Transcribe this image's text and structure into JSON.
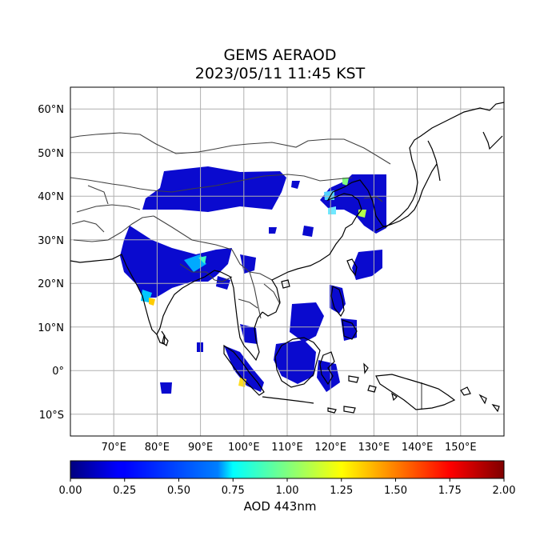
{
  "title_line1": "GEMS AERAOD",
  "title_line2": "2023/05/11 11:45 KST",
  "map": {
    "lon_range": [
      60,
      160
    ],
    "lat_range": [
      -15,
      65
    ],
    "gridlines": true,
    "lat_ticks": [
      "60°N",
      "50°N",
      "40°N",
      "30°N",
      "20°N",
      "10°N",
      "0°",
      "10°S"
    ],
    "lon_ticks": [
      "70°E",
      "80°E",
      "90°E",
      "100°E",
      "110°E",
      "120°E",
      "130°E",
      "140°E",
      "150°E"
    ],
    "colormap": "jet"
  },
  "colorbar": {
    "label": "AOD 443nm",
    "min": 0.0,
    "max": 2.0,
    "ticks": [
      "0.00",
      "0.25",
      "0.50",
      "0.75",
      "1.00",
      "1.25",
      "1.50",
      "1.75",
      "2.00"
    ],
    "colors": [
      "#00007f",
      "#0000ff",
      "#007fff",
      "#00ffff",
      "#7fff7f",
      "#ffff00",
      "#ff7f00",
      "#ff0000",
      "#7f0000"
    ]
  }
}
